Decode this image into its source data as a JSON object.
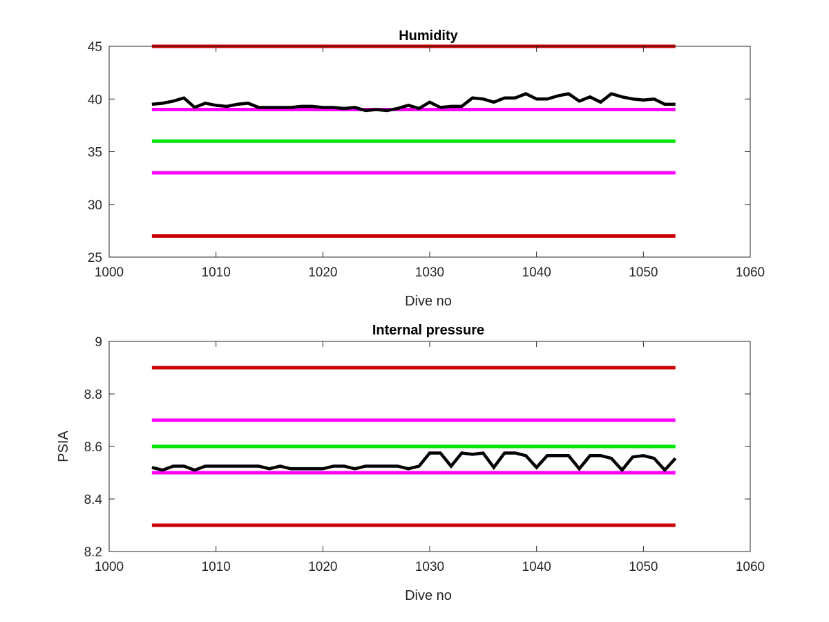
{
  "chart_data": [
    {
      "type": "line",
      "title": "Humidity",
      "xlabel": "Dive no",
      "ylabel": "",
      "xlim": [
        1000,
        1060
      ],
      "ylim": [
        25,
        45
      ],
      "xticks": [
        1000,
        1010,
        1020,
        1030,
        1040,
        1050,
        1060
      ],
      "yticks": [
        25,
        30,
        35,
        40,
        45
      ],
      "grid": false,
      "reference_lines": [
        {
          "color": "#cc0000",
          "y": 45,
          "x": [
            1004,
            1053
          ]
        },
        {
          "color": "#ff00ff",
          "y": 39,
          "x": [
            1004,
            1053
          ]
        },
        {
          "color": "#00e600",
          "y": 36,
          "x": [
            1004,
            1053
          ]
        },
        {
          "color": "#ff00ff",
          "y": 33,
          "x": [
            1004,
            1053
          ]
        },
        {
          "color": "#cc0000",
          "y": 27,
          "x": [
            1004,
            1053
          ]
        }
      ],
      "series": [
        {
          "color": "#000000",
          "x": [
            1004,
            1005,
            1006,
            1007,
            1008,
            1009,
            1010,
            1011,
            1012,
            1013,
            1014,
            1015,
            1016,
            1017,
            1018,
            1019,
            1020,
            1021,
            1022,
            1023,
            1024,
            1025,
            1026,
            1027,
            1028,
            1029,
            1030,
            1031,
            1032,
            1033,
            1034,
            1035,
            1036,
            1037,
            1038,
            1039,
            1040,
            1041,
            1042,
            1043,
            1044,
            1045,
            1046,
            1047,
            1048,
            1049,
            1050,
            1051,
            1052,
            1053
          ],
          "values": [
            39.5,
            39.6,
            39.8,
            40.1,
            39.2,
            39.6,
            39.4,
            39.3,
            39.5,
            39.6,
            39.2,
            39.2,
            39.2,
            39.2,
            39.3,
            39.3,
            39.2,
            39.2,
            39.1,
            39.2,
            38.9,
            39.0,
            38.9,
            39.1,
            39.4,
            39.1,
            39.7,
            39.2,
            39.3,
            39.3,
            40.1,
            40.0,
            39.7,
            40.1,
            40.1,
            40.5,
            40.0,
            40.0,
            40.3,
            40.5,
            39.8,
            40.2,
            39.7,
            40.5,
            40.2,
            40.0,
            39.9,
            40.0,
            39.5,
            39.5
          ]
        }
      ]
    },
    {
      "type": "line",
      "title": "Internal pressure",
      "xlabel": "Dive no",
      "ylabel": "PSIA",
      "xlim": [
        1000,
        1060
      ],
      "ylim": [
        8.2,
        9.0
      ],
      "xticks": [
        1000,
        1010,
        1020,
        1030,
        1040,
        1050,
        1060
      ],
      "yticks": [
        8.2,
        8.4,
        8.6,
        8.8,
        9.0
      ],
      "ytick_labels": [
        "8.2",
        "8.4",
        "8.6",
        "8.8",
        "9"
      ],
      "grid": false,
      "reference_lines": [
        {
          "color": "#cc0000",
          "y": 8.9,
          "x": [
            1004,
            1053
          ]
        },
        {
          "color": "#ff00ff",
          "y": 8.7,
          "x": [
            1004,
            1053
          ]
        },
        {
          "color": "#00e600",
          "y": 8.6,
          "x": [
            1004,
            1053
          ]
        },
        {
          "color": "#ff00ff",
          "y": 8.5,
          "x": [
            1004,
            1053
          ]
        },
        {
          "color": "#cc0000",
          "y": 8.3,
          "x": [
            1004,
            1053
          ]
        }
      ],
      "series": [
        {
          "color": "#000000",
          "x": [
            1004,
            1005,
            1006,
            1007,
            1008,
            1009,
            1010,
            1011,
            1012,
            1013,
            1014,
            1015,
            1016,
            1017,
            1018,
            1019,
            1020,
            1021,
            1022,
            1023,
            1024,
            1025,
            1026,
            1027,
            1028,
            1029,
            1030,
            1031,
            1032,
            1033,
            1034,
            1035,
            1036,
            1037,
            1038,
            1039,
            1040,
            1041,
            1042,
            1043,
            1044,
            1045,
            1046,
            1047,
            1048,
            1049,
            1050,
            1051,
            1052,
            1053
          ],
          "values": [
            8.52,
            8.51,
            8.525,
            8.525,
            8.51,
            8.525,
            8.525,
            8.525,
            8.525,
            8.525,
            8.525,
            8.515,
            8.525,
            8.515,
            8.515,
            8.515,
            8.515,
            8.525,
            8.525,
            8.515,
            8.525,
            8.525,
            8.525,
            8.525,
            8.515,
            8.525,
            8.575,
            8.575,
            8.525,
            8.575,
            8.57,
            8.575,
            8.52,
            8.575,
            8.575,
            8.565,
            8.52,
            8.565,
            8.565,
            8.565,
            8.515,
            8.565,
            8.565,
            8.555,
            8.51,
            8.56,
            8.565,
            8.555,
            8.51,
            8.555
          ]
        }
      ]
    }
  ]
}
